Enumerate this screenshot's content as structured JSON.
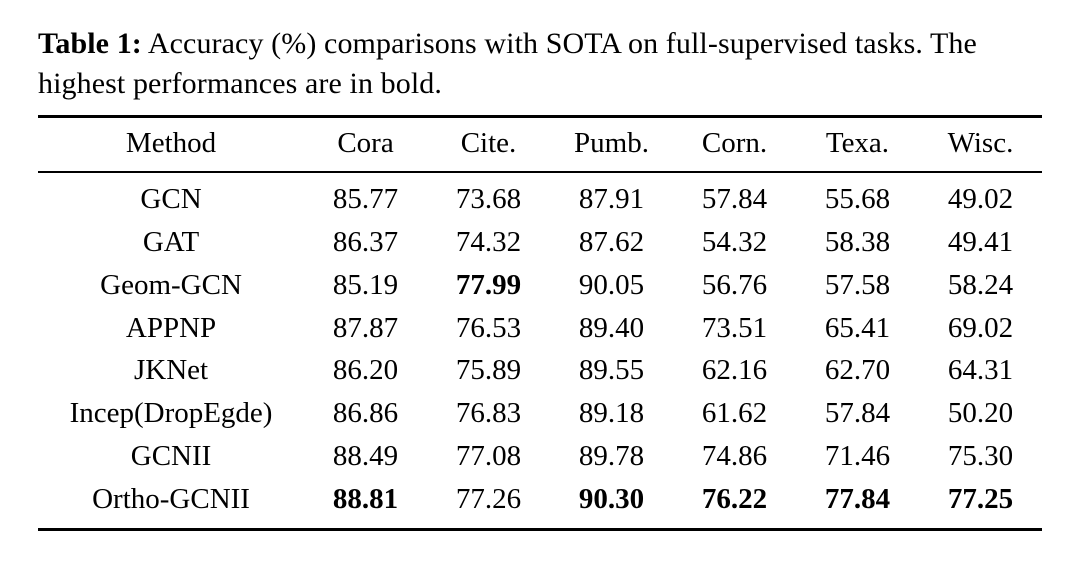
{
  "caption": {
    "label": "Table 1:",
    "text": "Accuracy (%) comparisons with SOTA on full-supervised tasks. The highest performances are in bold."
  },
  "table": {
    "headers": [
      "Method",
      "Cora",
      "Cite.",
      "Pumb.",
      "Corn.",
      "Texa.",
      "Wisc."
    ],
    "rows": [
      {
        "method": "GCN",
        "values": [
          "85.77",
          "73.68",
          "87.91",
          "57.84",
          "55.68",
          "49.02"
        ],
        "bold": [
          false,
          false,
          false,
          false,
          false,
          false
        ]
      },
      {
        "method": "GAT",
        "values": [
          "86.37",
          "74.32",
          "87.62",
          "54.32",
          "58.38",
          "49.41"
        ],
        "bold": [
          false,
          false,
          false,
          false,
          false,
          false
        ]
      },
      {
        "method": "Geom-GCN",
        "values": [
          "85.19",
          "77.99",
          "90.05",
          "56.76",
          "57.58",
          "58.24"
        ],
        "bold": [
          false,
          true,
          false,
          false,
          false,
          false
        ]
      },
      {
        "method": "APPNP",
        "values": [
          "87.87",
          "76.53",
          "89.40",
          "73.51",
          "65.41",
          "69.02"
        ],
        "bold": [
          false,
          false,
          false,
          false,
          false,
          false
        ]
      },
      {
        "method": "JKNet",
        "values": [
          "86.20",
          "75.89",
          "89.55",
          "62.16",
          "62.70",
          "64.31"
        ],
        "bold": [
          false,
          false,
          false,
          false,
          false,
          false
        ]
      },
      {
        "method": "Incep(DropEgde)",
        "values": [
          "86.86",
          "76.83",
          "89.18",
          "61.62",
          "57.84",
          "50.20"
        ],
        "bold": [
          false,
          false,
          false,
          false,
          false,
          false
        ]
      },
      {
        "method": "GCNII",
        "values": [
          "88.49",
          "77.08",
          "89.78",
          "74.86",
          "71.46",
          "75.30"
        ],
        "bold": [
          false,
          false,
          false,
          false,
          false,
          false
        ]
      },
      {
        "method": "Ortho-GCNII",
        "values": [
          "88.81",
          "77.26",
          "90.30",
          "76.22",
          "77.84",
          "77.25"
        ],
        "bold": [
          true,
          false,
          true,
          true,
          true,
          true
        ]
      }
    ]
  }
}
